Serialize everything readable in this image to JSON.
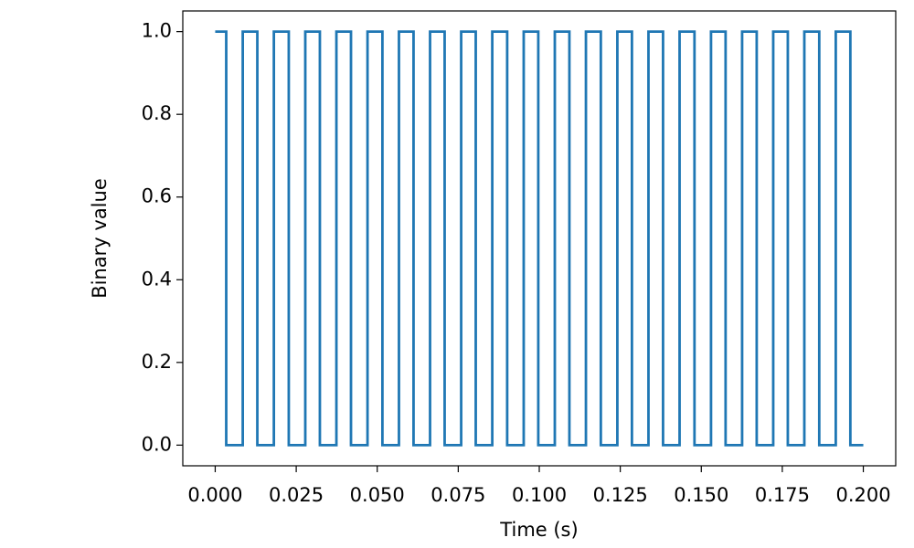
{
  "chart_data": {
    "type": "line",
    "drawstyle": "steps-post",
    "x_label": "Time (s)",
    "y_label": "Binary value",
    "x": [
      0,
      0.0034,
      0.0085,
      0.013,
      0.0181,
      0.0227,
      0.0278,
      0.0323,
      0.0374,
      0.0419,
      0.047,
      0.0516,
      0.0567,
      0.0612,
      0.0663,
      0.0708,
      0.0759,
      0.0804,
      0.0855,
      0.0901,
      0.0952,
      0.0997,
      0.1048,
      0.1093,
      0.1144,
      0.119,
      0.1241,
      0.1286,
      0.1337,
      0.1382,
      0.1433,
      0.1479,
      0.153,
      0.1575,
      0.1626,
      0.1671,
      0.1722,
      0.1767,
      0.1818,
      0.1864,
      0.1915,
      0.196,
      0.2
    ],
    "values": [
      1,
      0,
      1,
      0,
      1,
      0,
      1,
      0,
      1,
      0,
      1,
      0,
      1,
      0,
      1,
      0,
      1,
      0,
      1,
      0,
      1,
      0,
      1,
      0,
      1,
      0,
      1,
      0,
      1,
      0,
      1,
      0,
      1,
      0,
      1,
      0,
      1,
      0,
      1,
      0,
      1,
      0,
      0
    ],
    "color": "#1f77b4",
    "xlim": [
      -0.01,
      0.21
    ],
    "ylim": [
      -0.05,
      1.05
    ],
    "xticks": [
      {
        "value": 0,
        "label": "0.000"
      },
      0.025,
      {
        "value": 0.05,
        "label": "0.050"
      },
      0.075,
      {
        "value": 0.1,
        "label": "0.100"
      },
      0.125,
      {
        "value": 0.15,
        "label": "0.150"
      },
      0.175,
      {
        "value": 0.2,
        "label": "0.200"
      }
    ],
    "yticks": [
      {
        "value": 0,
        "label": "0.0"
      },
      0.2,
      0.4,
      0.6,
      0.8,
      {
        "value": 1,
        "label": "1.0"
      }
    ],
    "grid": false
  }
}
